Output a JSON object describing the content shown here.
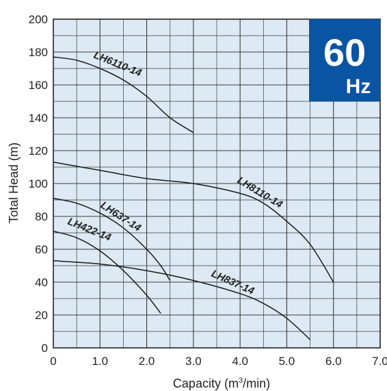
{
  "chart_data": {
    "type": "line",
    "xlabel": "Capacity (m",
    "xlabel_sup": "3",
    "xlabel_tail": "/min)",
    "ylabel": "Total Head (m)",
    "xlim": [
      0,
      7.0
    ],
    "ylim": [
      0,
      200
    ],
    "x_ticks": [
      "0",
      "1.0",
      "2.0",
      "3.0",
      "4.0",
      "5.0",
      "6.0",
      "7.0"
    ],
    "x_tick_values": [
      0,
      1,
      2,
      3,
      4,
      5,
      6,
      7
    ],
    "y_ticks": [
      "0",
      "20",
      "40",
      "60",
      "80",
      "100",
      "120",
      "140",
      "160",
      "180",
      "200"
    ],
    "y_tick_values": [
      0,
      20,
      40,
      60,
      80,
      100,
      120,
      140,
      160,
      180,
      200
    ],
    "grid": true,
    "plot_background": "#dde9f4",
    "grid_color": "#3a3a3a",
    "badge": {
      "value": "60",
      "unit": "Hz",
      "color": "#0a55a3",
      "placement": "top-right"
    },
    "series": [
      {
        "name": "LH6110-14",
        "x": [
          0,
          0.5,
          1.0,
          1.5,
          2.0,
          2.5,
          3.0
        ],
        "y": [
          177,
          175,
          170,
          163,
          153,
          140,
          131
        ]
      },
      {
        "name": "LH8110-14",
        "x": [
          0,
          1.0,
          2.0,
          3.0,
          4.0,
          4.5,
          5.0,
          5.5,
          6.0
        ],
        "y": [
          113,
          108,
          103,
          100,
          94,
          88,
          77,
          63,
          40
        ]
      },
      {
        "name": "LH637-14",
        "x": [
          0,
          0.5,
          1.0,
          1.5,
          2.0,
          2.3,
          2.5
        ],
        "y": [
          91,
          88,
          82,
          73,
          60,
          50,
          41
        ]
      },
      {
        "name": "LH422-14",
        "x": [
          0,
          0.5,
          1.0,
          1.5,
          2.0,
          2.3
        ],
        "y": [
          71,
          67,
          59,
          47,
          32,
          21
        ]
      },
      {
        "name": "LH837-14",
        "x": [
          0,
          1.0,
          2.0,
          3.0,
          4.0,
          4.5,
          5.0,
          5.5
        ],
        "y": [
          53,
          51,
          47,
          41,
          33,
          27,
          18,
          5
        ]
      }
    ]
  }
}
